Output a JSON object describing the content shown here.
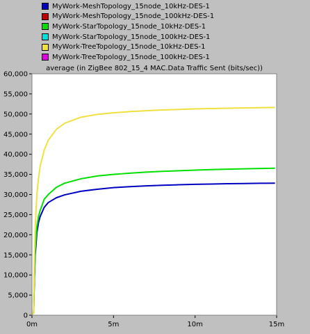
{
  "chart_data": {
    "type": "line",
    "title": "average (in ZigBee 802_15_4 MAC.Data Traffic Sent (bits/sec))",
    "xlabel": "",
    "ylabel": "",
    "xlim": [
      0,
      15
    ],
    "ylim": [
      0,
      60000
    ],
    "x_ticks": [
      {
        "value": 0,
        "label": "0m"
      },
      {
        "value": 5,
        "label": "5m"
      },
      {
        "value": 10,
        "label": "10m"
      },
      {
        "value": 15,
        "label": "15m"
      }
    ],
    "y_ticks": [
      {
        "value": 0,
        "label": "0"
      },
      {
        "value": 5000,
        "label": "5,000"
      },
      {
        "value": 10000,
        "label": "10,000"
      },
      {
        "value": 15000,
        "label": "15,000"
      },
      {
        "value": 20000,
        "label": "20,000"
      },
      {
        "value": 25000,
        "label": "25,000"
      },
      {
        "value": 30000,
        "label": "30,000"
      },
      {
        "value": 35000,
        "label": "35,000"
      },
      {
        "value": 40000,
        "label": "40,000"
      },
      {
        "value": 45000,
        "label": "45,000"
      },
      {
        "value": 50000,
        "label": "50,000"
      },
      {
        "value": 55000,
        "label": "55,000"
      },
      {
        "value": 60000,
        "label": "60,000"
      }
    ],
    "grid": false,
    "legend_position": "top",
    "series": [
      {
        "name": "MyWork-MeshTopology_15node_10kHz-DES-1",
        "color": "#0000c0",
        "x": [
          0,
          0.05,
          0.1,
          0.15,
          0.2,
          0.3,
          0.4,
          0.5,
          0.75,
          1,
          1.5,
          2,
          3,
          4,
          5,
          6,
          7,
          8,
          9,
          10,
          11,
          12,
          13,
          14,
          14.9
        ],
        "y": [
          0,
          500,
          500,
          9000,
          15000,
          20500,
          23000,
          24500,
          26800,
          28000,
          29200,
          29900,
          30800,
          31300,
          31700,
          31950,
          32150,
          32300,
          32420,
          32520,
          32600,
          32670,
          32730,
          32780,
          32820
        ]
      },
      {
        "name": "MyWork-MeshTopology_15node_100kHz-DES-1",
        "color": "#c00000",
        "x": [],
        "y": []
      },
      {
        "name": "MyWork-StarTopology_15node_10kHz-DES-1",
        "color": "#00e000",
        "x": [
          0,
          0.05,
          0.1,
          0.15,
          0.2,
          0.3,
          0.4,
          0.5,
          0.75,
          1,
          1.5,
          2,
          3,
          4,
          5,
          6,
          7,
          8,
          9,
          10,
          11,
          12,
          13,
          14,
          14.9
        ],
        "y": [
          0,
          500,
          500,
          10000,
          16500,
          22000,
          24500,
          26000,
          28800,
          30000,
          31800,
          32800,
          33900,
          34600,
          35000,
          35300,
          35550,
          35750,
          35900,
          36050,
          36180,
          36290,
          36380,
          36460,
          36530
        ]
      },
      {
        "name": "MyWork-StarTopology_15node_100kHz-DES-1",
        "color": "#00e0e0",
        "x": [],
        "y": []
      },
      {
        "name": "MyWork-TreeTopology_15node_10kHz-DES-1",
        "color": "#f0e040",
        "x": [
          0,
          0.05,
          0.1,
          0.15,
          0.2,
          0.3,
          0.4,
          0.5,
          0.75,
          1,
          1.5,
          2,
          3,
          4,
          5,
          6,
          7,
          8,
          9,
          10,
          11,
          12,
          13,
          14,
          14.9
        ],
        "y": [
          0,
          500,
          500,
          14000,
          22000,
          30000,
          34000,
          37000,
          41000,
          43500,
          46200,
          47700,
          49200,
          49900,
          50300,
          50600,
          50820,
          51000,
          51140,
          51260,
          51360,
          51440,
          51510,
          51570,
          51620
        ]
      },
      {
        "name": "MyWork-TreeTopology_15node_100kHz-DES-1",
        "color": "#e000e0",
        "x": [],
        "y": []
      }
    ]
  }
}
